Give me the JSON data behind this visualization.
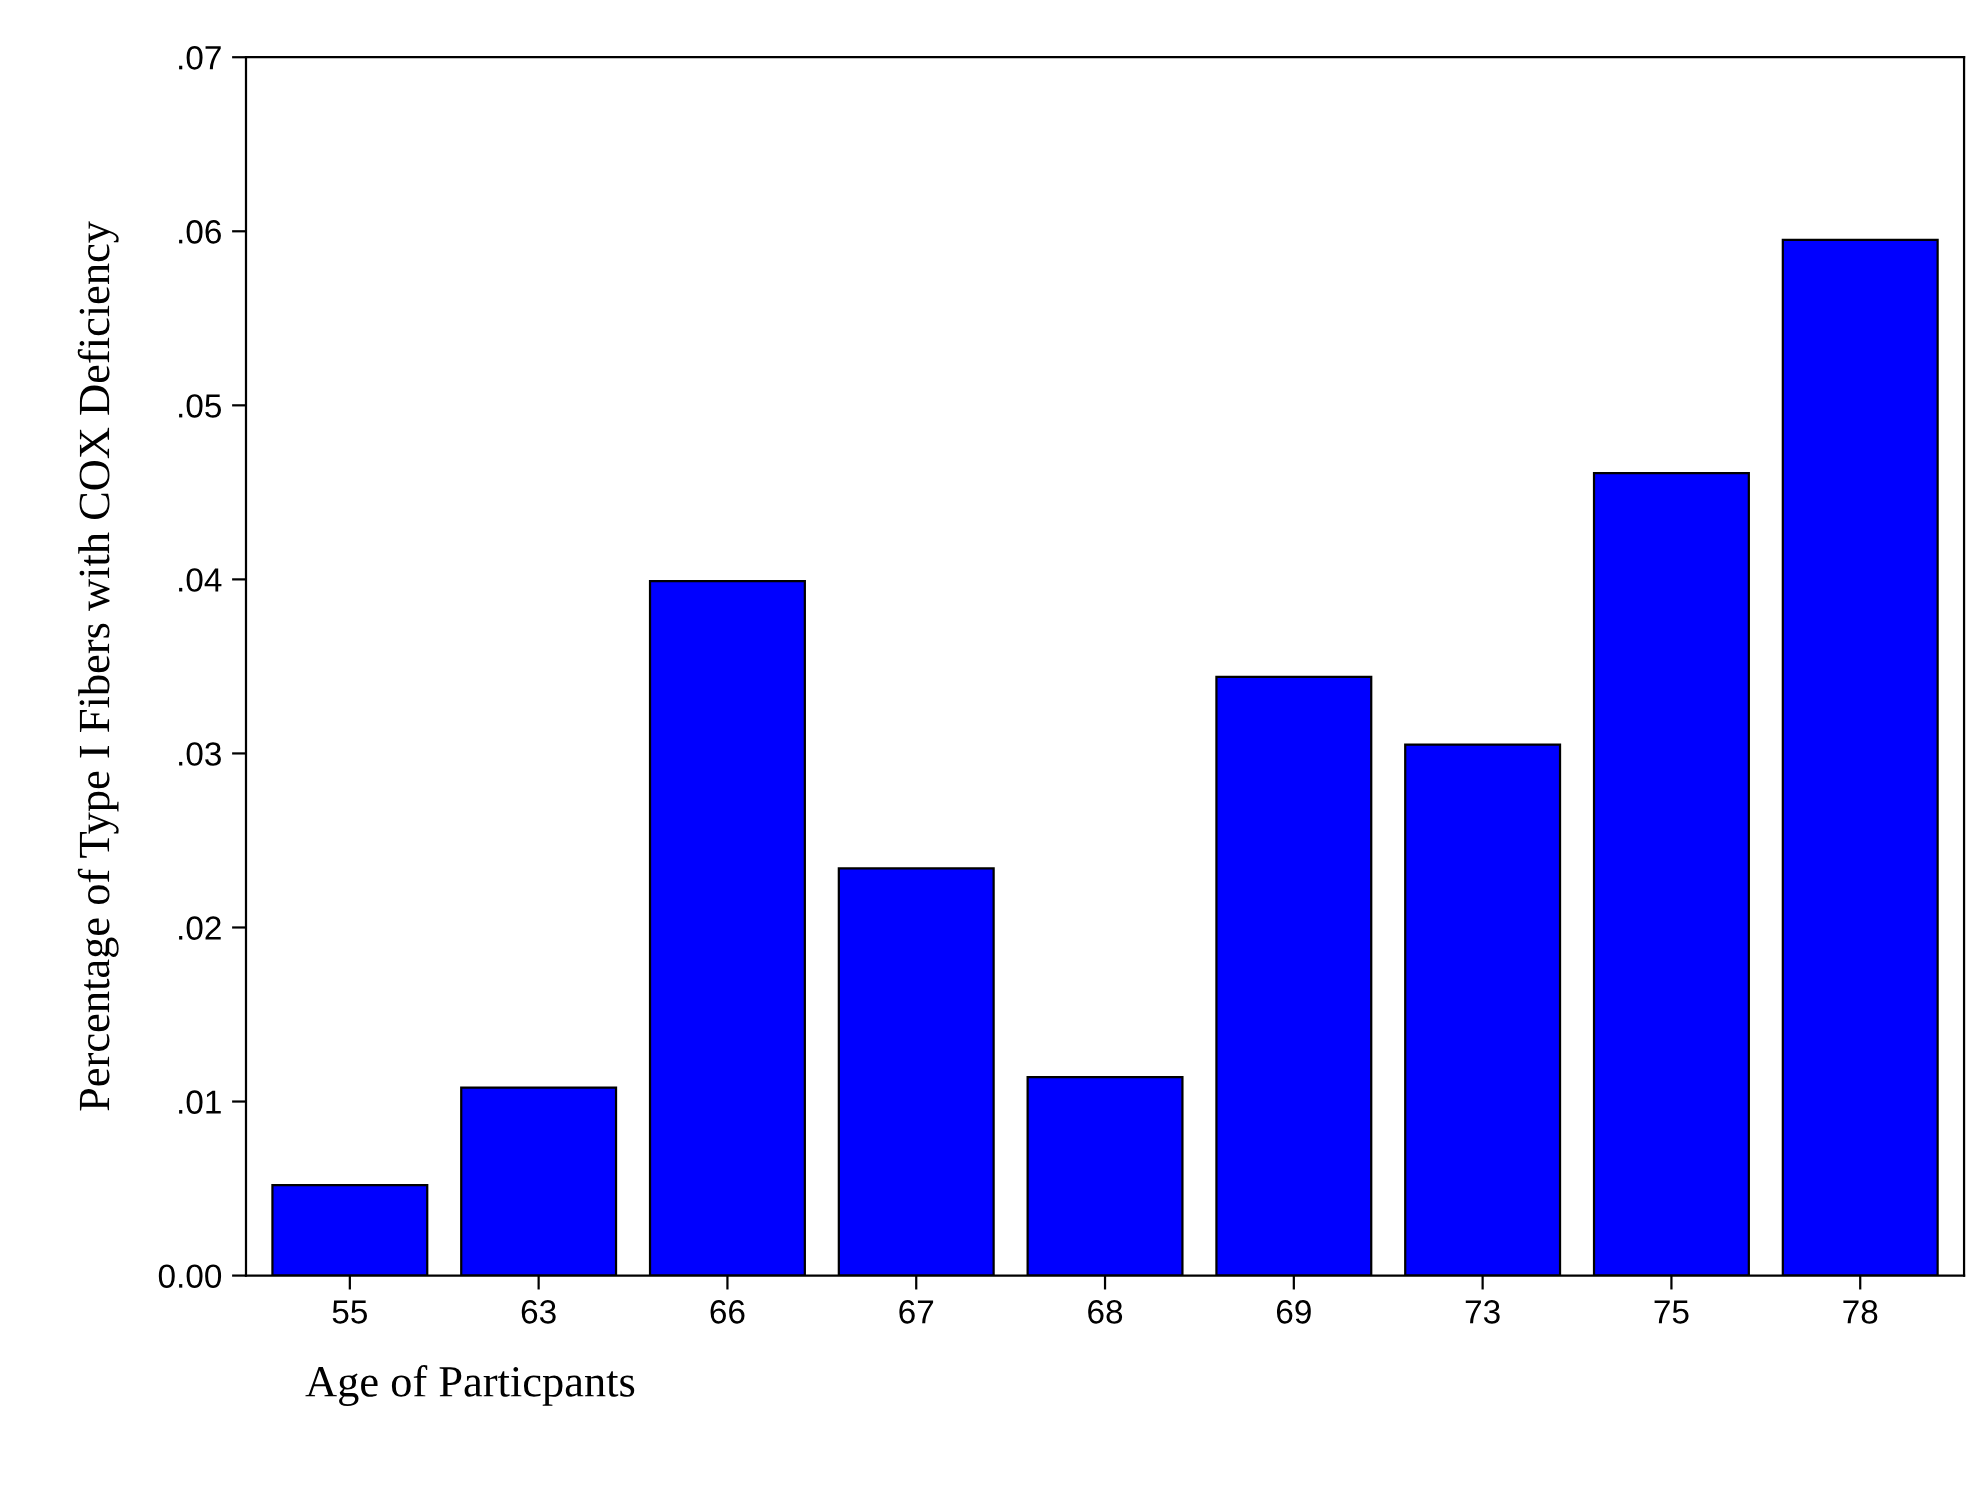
{
  "chart_data": {
    "type": "bar",
    "xlabel": "Age of Particpants",
    "ylabel": "Percentage of Type I Fibers with COX Deficiency",
    "categories": [
      "55",
      "63",
      "66",
      "67",
      "68",
      "69",
      "73",
      "75",
      "78"
    ],
    "values": [
      0.0052,
      0.0108,
      0.0399,
      0.0234,
      0.0114,
      0.0344,
      0.0305,
      0.0461,
      0.0595
    ],
    "color": "#0000ff",
    "ylim": [
      0,
      0.07
    ],
    "yticks": [
      {
        "value": 0,
        "label": "0.00"
      },
      {
        "value": 0.01,
        "label": ".01"
      },
      {
        "value": 0.02,
        "label": ".02"
      },
      {
        "value": 0.03,
        "label": ".03"
      },
      {
        "value": 0.04,
        "label": ".04"
      },
      {
        "value": 0.05,
        "label": ".05"
      },
      {
        "value": 0.06,
        "label": ".06"
      },
      {
        "value": 0.07,
        "label": ".07"
      }
    ],
    "grid": false,
    "legend": false
  }
}
